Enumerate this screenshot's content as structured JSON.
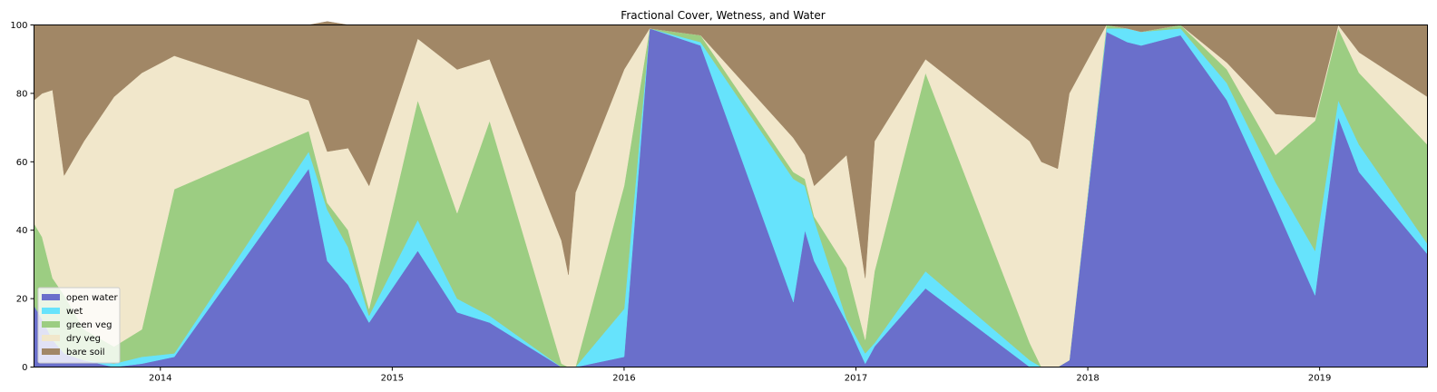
{
  "chart_data": {
    "type": "area",
    "stacked": true,
    "title": "Fractional Cover, Wetness, and Water",
    "xlabel": "",
    "ylabel": "",
    "xlim": [
      2013.455,
      2019.465
    ],
    "ylim": [
      0,
      100
    ],
    "x_ticks": [
      2014,
      2015,
      2016,
      2017,
      2018,
      2019
    ],
    "x_tick_labels": [
      "2014",
      "2015",
      "2016",
      "2017",
      "2018",
      "2019"
    ],
    "y_ticks": [
      0,
      20,
      40,
      60,
      80,
      100
    ],
    "y_tick_labels": [
      "0",
      "20",
      "40",
      "60",
      "80",
      "100"
    ],
    "legend_position": "lower-left",
    "grid": false,
    "x": [
      2013.455,
      2013.49,
      2013.535,
      2013.585,
      2013.67,
      2013.8,
      2013.92,
      2014.06,
      2014.64,
      2014.72,
      2014.81,
      2014.9,
      2015.11,
      2015.28,
      2015.42,
      2015.73,
      2015.76,
      2015.79,
      2016.0,
      2016.11,
      2016.33,
      2016.73,
      2016.78,
      2016.82,
      2016.96,
      2017.04,
      2017.08,
      2017.3,
      2017.75,
      2017.8,
      2017.87,
      2017.92,
      2018.08,
      2018.17,
      2018.23,
      2018.4,
      2018.6,
      2018.81,
      2018.98,
      2019.08,
      2019.17,
      2019.465
    ],
    "series": [
      {
        "name": "open water",
        "color": "#6a6fcb",
        "values": [
          18,
          14,
          8,
          4,
          2,
          0,
          1,
          3,
          58,
          31,
          24,
          13,
          34,
          16,
          13,
          0,
          0,
          0,
          3,
          99,
          94,
          19,
          40,
          31,
          13,
          1,
          6,
          23,
          0,
          0,
          0,
          2,
          98,
          95,
          94,
          97,
          78,
          47,
          21,
          73,
          57,
          33
        ]
      },
      {
        "name": "wet",
        "color": "#66e3fc",
        "values": [
          0,
          0,
          0,
          0,
          0,
          1,
          2,
          1,
          5,
          15,
          11,
          2,
          9,
          4,
          2,
          0,
          0,
          0,
          14,
          0,
          1,
          36,
          13,
          12,
          1,
          3,
          1,
          5,
          2,
          0,
          0,
          0,
          1,
          4,
          4,
          2,
          5,
          7,
          13,
          5,
          8,
          3
        ]
      },
      {
        "name": "green veg",
        "color": "#9ccd82",
        "values": [
          24,
          24,
          18,
          17,
          9,
          5,
          8,
          48,
          6,
          2,
          5,
          2,
          35,
          25,
          57,
          1,
          0,
          0,
          36,
          0,
          2,
          2,
          2,
          1,
          15,
          4,
          21,
          58,
          5,
          0,
          0,
          0,
          1,
          0,
          0,
          1,
          4,
          8,
          38,
          21,
          21,
          29
        ]
      },
      {
        "name": "dry veg",
        "color": "#f1e7cb",
        "values": [
          36,
          42,
          55,
          35,
          55,
          73,
          75,
          39,
          9,
          15,
          24,
          36,
          18,
          42,
          18,
          36,
          27,
          51,
          34,
          0,
          0,
          10,
          7,
          9,
          33,
          18,
          38,
          4,
          59,
          60,
          58,
          78,
          0,
          0,
          0,
          0,
          2,
          12,
          1,
          1,
          6,
          14
        ]
      },
      {
        "name": "bare soil",
        "color": "#a18766",
        "values": [
          22,
          20,
          19,
          44,
          34,
          21,
          14,
          9,
          22,
          38,
          36,
          47,
          4,
          13,
          10,
          63,
          73,
          49,
          13,
          1,
          3,
          33,
          38,
          47,
          38,
          74,
          34,
          10,
          34,
          40,
          42,
          20,
          0,
          1,
          2,
          0,
          11,
          26,
          27,
          0,
          8,
          21
        ]
      }
    ]
  }
}
